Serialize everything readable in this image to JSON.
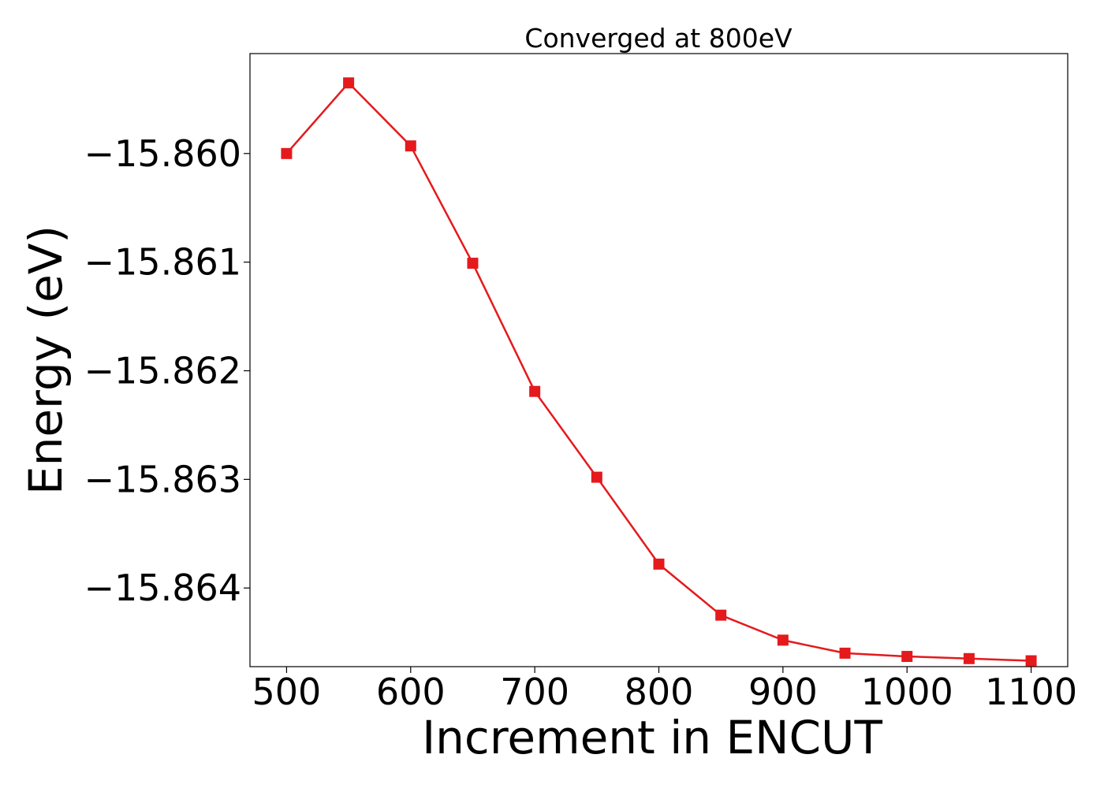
{
  "chart_data": {
    "type": "line",
    "title": "Converged at 800eV",
    "xlabel": "Increment in ENCUT",
    "ylabel": "Energy (eV)",
    "x": [
      500,
      550,
      600,
      650,
      700,
      750,
      800,
      850,
      900,
      950,
      1000,
      1050,
      1100
    ],
    "series": [
      {
        "values": [
          -15.86,
          -15.85935,
          -15.85993,
          -15.86101,
          -15.86219,
          -15.86298,
          -15.86378,
          -15.86425,
          -15.86448,
          -15.8646,
          -15.86463,
          -15.86465,
          -15.86467
        ],
        "color": "#e41a1c",
        "marker": "square"
      }
    ],
    "xticks": [
      500,
      600,
      700,
      800,
      900,
      1000,
      1100
    ],
    "xtick_labels": [
      "500",
      "600",
      "700",
      "800",
      "900",
      "1000",
      "1100"
    ],
    "yticks": [
      -15.86,
      -15.861,
      -15.862,
      -15.863,
      -15.864
    ],
    "ytick_labels": [
      "−15.860",
      "−15.861",
      "−15.862",
      "−15.863",
      "−15.864"
    ],
    "xlim": [
      470.5,
      1129.5
    ],
    "ylim": [
      -15.864724,
      -15.85908
    ],
    "grid": false,
    "legend": "none"
  }
}
